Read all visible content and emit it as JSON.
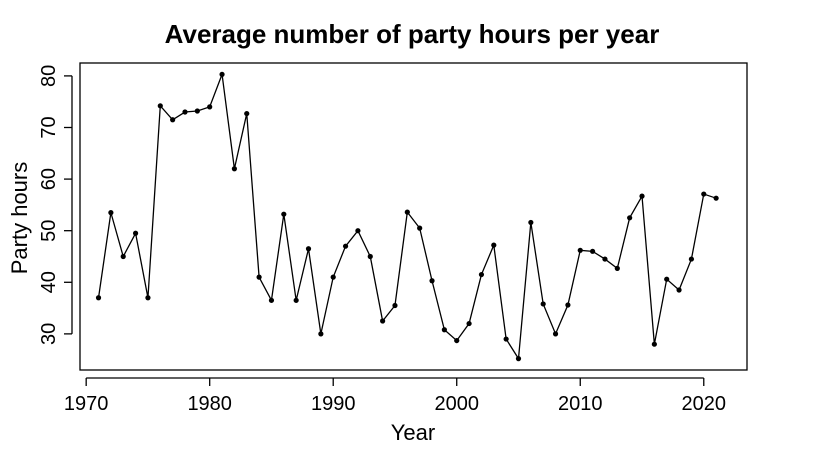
{
  "chart_data": {
    "type": "line",
    "title": "Average number of party hours per year",
    "xlabel": "Year",
    "ylabel": "Party hours",
    "xlim": [
      1969.5,
      2023.5
    ],
    "ylim": [
      23,
      82.5
    ],
    "xticks": [
      1970,
      1980,
      1990,
      2000,
      2010,
      2020
    ],
    "yticks": [
      30,
      40,
      50,
      60,
      70,
      80
    ],
    "grid": false,
    "legend": "none",
    "color": "#000000",
    "x": [
      1971,
      1972,
      1973,
      1974,
      1975,
      1976,
      1977,
      1978,
      1979,
      1980,
      1981,
      1982,
      1983,
      1984,
      1985,
      1986,
      1987,
      1988,
      1989,
      1990,
      1991,
      1992,
      1993,
      1994,
      1995,
      1996,
      1997,
      1998,
      1999,
      2000,
      2001,
      2002,
      2003,
      2004,
      2005,
      2006,
      2007,
      2008,
      2009,
      2010,
      2011,
      2012,
      2013,
      2014,
      2015,
      2016,
      2017,
      2018,
      2019,
      2020,
      2021
    ],
    "y": [
      37.0,
      53.5,
      45.0,
      49.5,
      37.0,
      74.2,
      71.5,
      73.0,
      73.2,
      74.0,
      80.3,
      62.0,
      72.7,
      41.0,
      36.5,
      53.2,
      36.5,
      46.5,
      30.0,
      41.0,
      47.0,
      50.0,
      45.0,
      32.5,
      35.5,
      53.6,
      50.5,
      40.3,
      30.8,
      28.7,
      32.0,
      41.5,
      47.2,
      29.0,
      25.2,
      51.6,
      35.8,
      30.0,
      35.6,
      46.2,
      46.0,
      44.5,
      42.7,
      52.5,
      56.7,
      28.0,
      40.6,
      38.5,
      44.5,
      57.1,
      56.3
    ]
  }
}
